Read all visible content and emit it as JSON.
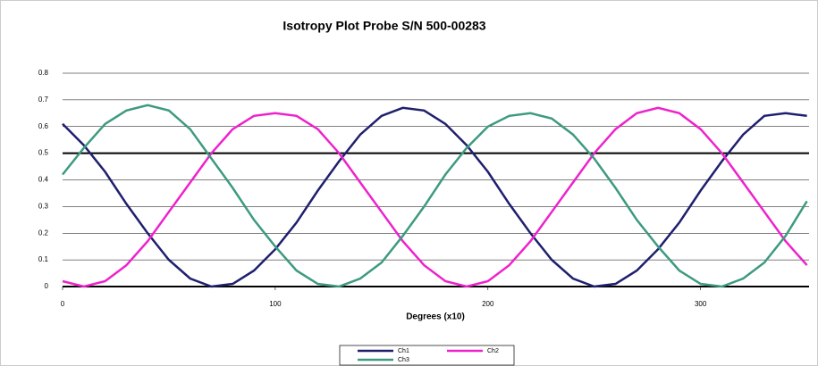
{
  "chart_data": {
    "type": "line",
    "title": "Isotropy Plot Probe S/N 500-00283",
    "xlabel": "Degrees (x10)",
    "x": [
      0,
      10,
      20,
      30,
      40,
      50,
      60,
      70,
      80,
      90,
      100,
      110,
      120,
      130,
      140,
      150,
      160,
      170,
      180,
      190,
      200,
      210,
      220,
      230,
      240,
      250,
      260,
      270,
      280,
      290,
      300,
      310,
      320,
      330,
      340,
      350
    ],
    "series": [
      {
        "name": "Ch1",
        "color": "#1f1f6e",
        "values": [
          0.61,
          0.53,
          0.43,
          0.31,
          0.2,
          0.1,
          0.03,
          0.0,
          0.01,
          0.06,
          0.14,
          0.24,
          0.36,
          0.47,
          0.57,
          0.64,
          0.67,
          0.66,
          0.61,
          0.53,
          0.43,
          0.31,
          0.2,
          0.1,
          0.03,
          0.0,
          0.01,
          0.06,
          0.14,
          0.24,
          0.36,
          0.47,
          0.57,
          0.64,
          0.65,
          0.64
        ]
      },
      {
        "name": "Ch2",
        "color": "#ee22cc",
        "values": [
          0.02,
          0.0,
          0.02,
          0.08,
          0.17,
          0.28,
          0.39,
          0.5,
          0.59,
          0.64,
          0.65,
          0.64,
          0.59,
          0.5,
          0.39,
          0.28,
          0.17,
          0.08,
          0.02,
          0.0,
          0.02,
          0.08,
          0.17,
          0.28,
          0.39,
          0.5,
          0.59,
          0.65,
          0.67,
          0.65,
          0.59,
          0.5,
          0.39,
          0.28,
          0.17,
          0.08
        ]
      },
      {
        "name": "Ch3",
        "color": "#3d9a80",
        "values": [
          0.42,
          0.52,
          0.61,
          0.66,
          0.68,
          0.66,
          0.59,
          0.48,
          0.37,
          0.25,
          0.15,
          0.06,
          0.01,
          0.0,
          0.03,
          0.09,
          0.19,
          0.3,
          0.42,
          0.52,
          0.6,
          0.64,
          0.65,
          0.63,
          0.57,
          0.48,
          0.37,
          0.25,
          0.15,
          0.06,
          0.01,
          0.0,
          0.03,
          0.09,
          0.19,
          0.32
        ]
      }
    ],
    "xlim": [
      0,
      351
    ],
    "xticks": [
      0,
      100,
      200,
      300
    ],
    "ylim": [
      0,
      0.8
    ],
    "yticks": [
      0,
      0.1,
      0.2,
      0.3,
      0.4,
      0.5,
      0.6,
      0.7,
      0.8
    ],
    "reference_line": 0.5,
    "grid": true,
    "legend": "bottom"
  }
}
